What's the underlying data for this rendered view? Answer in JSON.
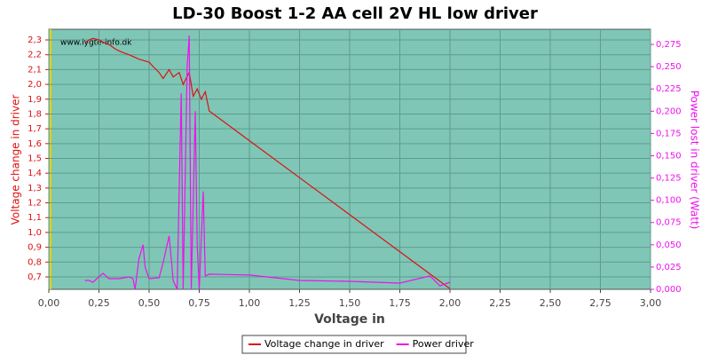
{
  "chart_data": {
    "type": "line",
    "title": "LD-30 Boost 1-2 AA cell 2V HL low driver",
    "watermark": "www.lygte-info.dk",
    "x_label": "Voltage in",
    "y_label": "Voltage change in driver",
    "y2_label": "Power lost in driver (Watt)",
    "grid": true,
    "legend": "bottom",
    "xlim": [
      0,
      3
    ],
    "ylim": [
      0.616,
      2.372
    ],
    "y2lim": [
      0,
      0.292
    ],
    "xticks": [
      {
        "value": 0,
        "label": "0,00"
      },
      {
        "value": 0.25,
        "label": "0,25"
      },
      {
        "value": 0.5,
        "label": "0,50"
      },
      {
        "value": 0.75,
        "label": "0,75"
      },
      {
        "value": 1,
        "label": "1,00"
      },
      {
        "value": 1.25,
        "label": "1,25"
      },
      {
        "value": 1.5,
        "label": "1,50"
      },
      {
        "value": 1.75,
        "label": "1,75"
      },
      {
        "value": 2,
        "label": "2,00"
      },
      {
        "value": 2.25,
        "label": "2,25"
      },
      {
        "value": 2.5,
        "label": "2,50"
      },
      {
        "value": 2.75,
        "label": "2,75"
      },
      {
        "value": 3,
        "label": "3,00"
      }
    ],
    "yticks": [
      {
        "value": 0.7,
        "label": "0,7"
      },
      {
        "value": 0.8,
        "label": "0,8"
      },
      {
        "value": 0.9,
        "label": "0,9"
      },
      {
        "value": 1.0,
        "label": "1,0"
      },
      {
        "value": 1.1,
        "label": "1,1"
      },
      {
        "value": 1.2,
        "label": "1,2"
      },
      {
        "value": 1.3,
        "label": "1,3"
      },
      {
        "value": 1.4,
        "label": "1,4"
      },
      {
        "value": 1.5,
        "label": "1,5"
      },
      {
        "value": 1.6,
        "label": "1,6"
      },
      {
        "value": 1.7,
        "label": "1,7"
      },
      {
        "value": 1.8,
        "label": "1,8"
      },
      {
        "value": 1.9,
        "label": "1,9"
      },
      {
        "value": 2.0,
        "label": "2,0"
      },
      {
        "value": 2.1,
        "label": "2,1"
      },
      {
        "value": 2.2,
        "label": "2,2"
      },
      {
        "value": 2.3,
        "label": "2,3"
      }
    ],
    "y2ticks": [
      {
        "value": 0,
        "label": "0,000"
      },
      {
        "value": 0.025,
        "label": "0,025"
      },
      {
        "value": 0.05,
        "label": "0,050"
      },
      {
        "value": 0.075,
        "label": "0,075"
      },
      {
        "value": 0.1,
        "label": "0,100"
      },
      {
        "value": 0.125,
        "label": "0,125"
      },
      {
        "value": 0.15,
        "label": "0,150"
      },
      {
        "value": 0.175,
        "label": "0,175"
      },
      {
        "value": 0.2,
        "label": "0,200"
      },
      {
        "value": 0.225,
        "label": "0,225"
      },
      {
        "value": 0.25,
        "label": "0,250"
      },
      {
        "value": 0.275,
        "label": "0,275"
      }
    ],
    "series": [
      {
        "name": "Voltage change in driver",
        "color": "#dd1111",
        "x": [
          0.18,
          0.2,
          0.22,
          0.25,
          0.28,
          0.3,
          0.33,
          0.36,
          0.4,
          0.45,
          0.5,
          0.52,
          0.55,
          0.57,
          0.6,
          0.62,
          0.65,
          0.67,
          0.7,
          0.72,
          0.74,
          0.76,
          0.78,
          0.8,
          1.0,
          1.25,
          1.5,
          1.75,
          1.9,
          2.0
        ],
        "values": [
          2.28,
          2.3,
          2.31,
          2.3,
          2.28,
          2.27,
          2.24,
          2.22,
          2.2,
          2.17,
          2.15,
          2.12,
          2.08,
          2.04,
          2.1,
          2.05,
          2.08,
          2.0,
          2.08,
          1.92,
          1.97,
          1.9,
          1.95,
          1.82,
          1.62,
          1.37,
          1.12,
          0.87,
          0.72,
          0.62
        ]
      },
      {
        "name": "Power driver",
        "color": "#ee11ee",
        "axis": "y2",
        "x": [
          0.18,
          0.2,
          0.22,
          0.27,
          0.3,
          0.35,
          0.4,
          0.42,
          0.43,
          0.45,
          0.47,
          0.48,
          0.5,
          0.55,
          0.57,
          0.6,
          0.62,
          0.64,
          0.66,
          0.67,
          0.69,
          0.7,
          0.71,
          0.73,
          0.74,
          0.75,
          0.77,
          0.78,
          0.8,
          1.0,
          1.25,
          1.5,
          1.75,
          1.9,
          1.95,
          2.0
        ],
        "values": [
          0.01,
          0.01,
          0.008,
          0.018,
          0.012,
          0.012,
          0.014,
          0.012,
          0.0,
          0.035,
          0.05,
          0.025,
          0.012,
          0.013,
          0.03,
          0.06,
          0.01,
          0.0,
          0.22,
          0.0,
          0.25,
          0.285,
          0.0,
          0.2,
          0.05,
          0.0,
          0.11,
          0.015,
          0.017,
          0.016,
          0.01,
          0.009,
          0.007,
          0.015,
          0.004,
          0.008
        ]
      }
    ]
  }
}
